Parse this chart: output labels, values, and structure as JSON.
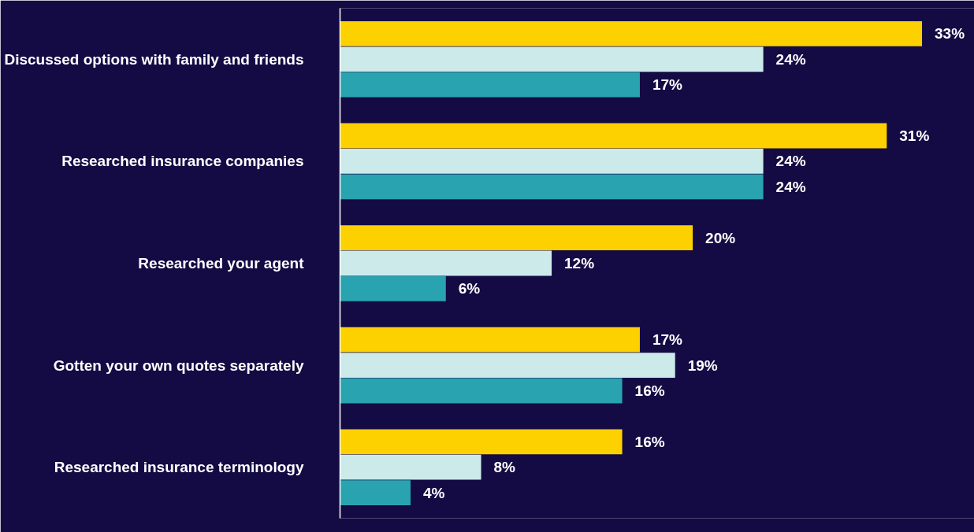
{
  "chart_data": {
    "type": "bar",
    "orientation": "horizontal",
    "grid": false,
    "categories": [
      "Discussed options with family and friends",
      "Researched insurance companies",
      "Researched your agent",
      "Gotten your own quotes separately",
      "Researched insurance terminology"
    ],
    "series": [
      {
        "color": "#fdd000",
        "values": [
          33,
          31,
          20,
          17,
          16
        ],
        "value_labels": [
          "33%",
          "31%",
          "20%",
          "17%",
          "16%"
        ]
      },
      {
        "color": "#cdeaea",
        "values": [
          24,
          24,
          12,
          19,
          8
        ],
        "value_labels": [
          "24%",
          "24%",
          "12%",
          "19%",
          "8%"
        ]
      },
      {
        "color": "#2aa3b0",
        "values": [
          17,
          24,
          6,
          16,
          4
        ],
        "value_labels": [
          "17%",
          "24%",
          "6%",
          "16%",
          "4%"
        ]
      }
    ]
  }
}
